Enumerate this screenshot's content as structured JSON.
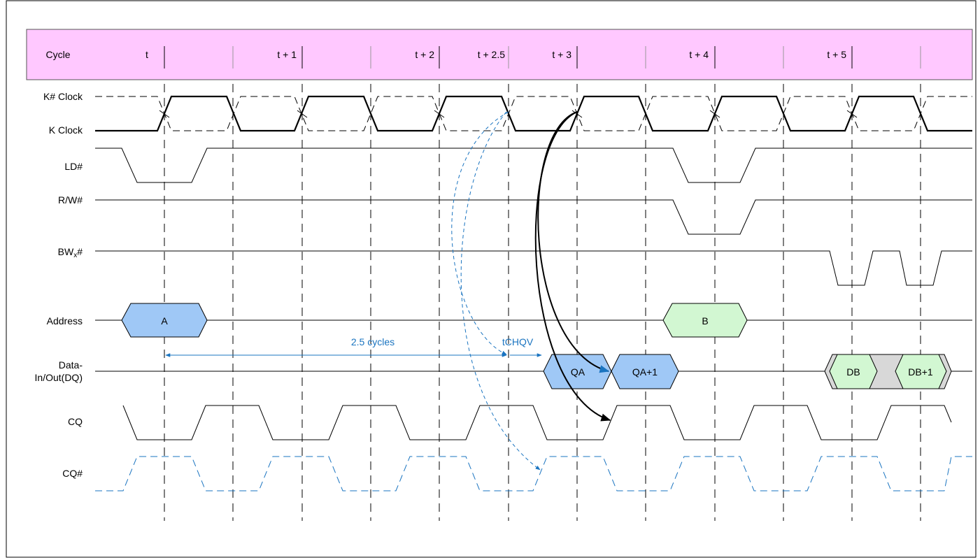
{
  "cycle_header": {
    "label": "Cycle",
    "ticks": [
      "t",
      "t + 1",
      "t + 2",
      "t + 2.5",
      "t + 3",
      "t + 4",
      "t + 5"
    ]
  },
  "signals": {
    "k_sharp_clock": "K# Clock",
    "k_clock": "K Clock",
    "ld": "LD#",
    "rw": "R/W#",
    "bwx_main": "BW",
    "bwx_sub": "x",
    "bwx_tail": "#",
    "address": "Address",
    "dq_line1": "Data-",
    "dq_line2": "In/Out(DQ)",
    "cq": "CQ",
    "cq_sharp": "CQ#"
  },
  "address_values": {
    "a": "A",
    "b": "B"
  },
  "dq_values": {
    "qa": "QA",
    "qa1": "QA+1",
    "db": "DB",
    "db1": "DB+1"
  },
  "annotations": {
    "latency": "2.5 cycles",
    "tchqv": "tCHQV"
  },
  "colors": {
    "header_fill": "#ffc8ff",
    "read_fill": "#9fc8f6",
    "write_fill": "#d2f7d2",
    "gray_fill": "#d8d8d8",
    "annotation_blue": "#1a74c0"
  }
}
